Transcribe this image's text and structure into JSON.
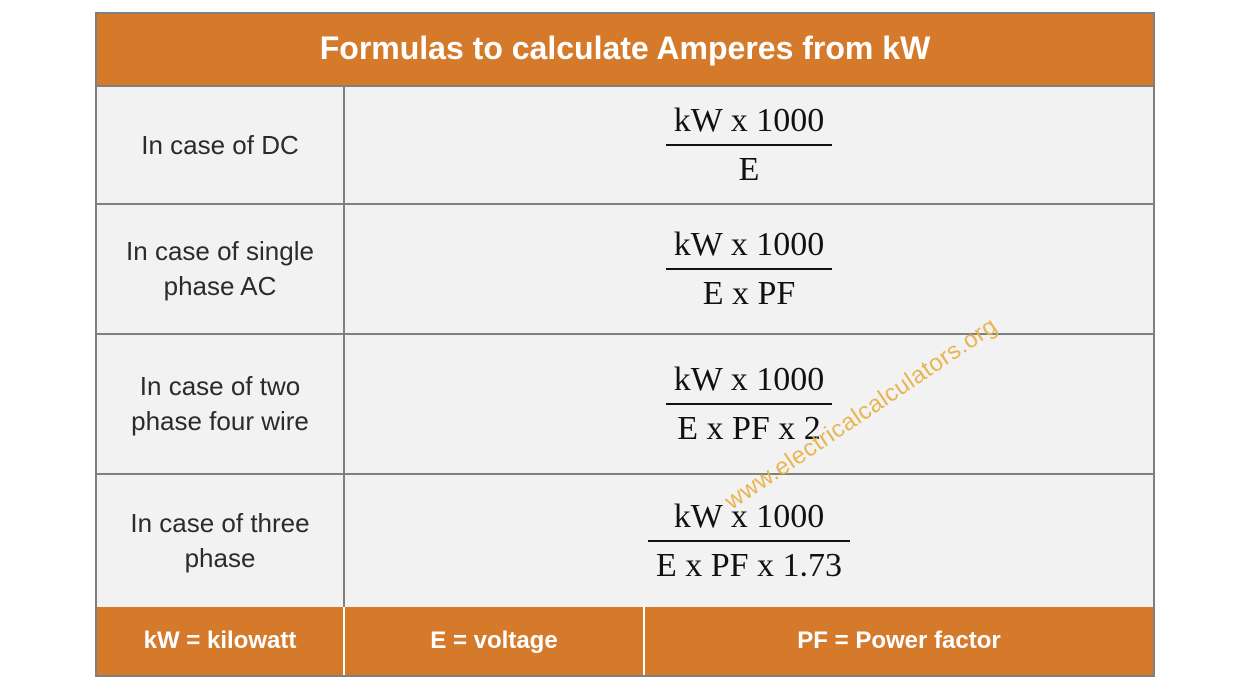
{
  "title": "Formulas to calculate Amperes from kW",
  "colors": {
    "accent": "#d57a2b",
    "header_text": "#ffffff",
    "row_bg": "#f2f2f2",
    "border": "#7f7f7f",
    "label_text": "#2b2b2b",
    "formula_text": "#111111",
    "watermark": "#e8b24a"
  },
  "typography": {
    "header_fontsize": 32,
    "label_fontsize": 26,
    "formula_fontsize": 34,
    "footer_fontsize": 24,
    "formula_family": "Cambria Math"
  },
  "rows": [
    {
      "label": "In case of DC",
      "numerator": "kW x 1000",
      "denominator": "E"
    },
    {
      "label": "In case of single phase AC",
      "numerator": "kW x 1000",
      "denominator": "E x PF"
    },
    {
      "label": "In case of two phase four wire",
      "numerator": "kW x 1000",
      "denominator": "E x PF x 2"
    },
    {
      "label": "In case of three phase",
      "numerator": "kW x 1000",
      "denominator": "E x PF x 1.73"
    }
  ],
  "legend": {
    "kw": "kW = kilowatt",
    "e": "E = voltage",
    "pf": "PF = Power factor"
  },
  "watermark": "www.electricalcalculators.org"
}
